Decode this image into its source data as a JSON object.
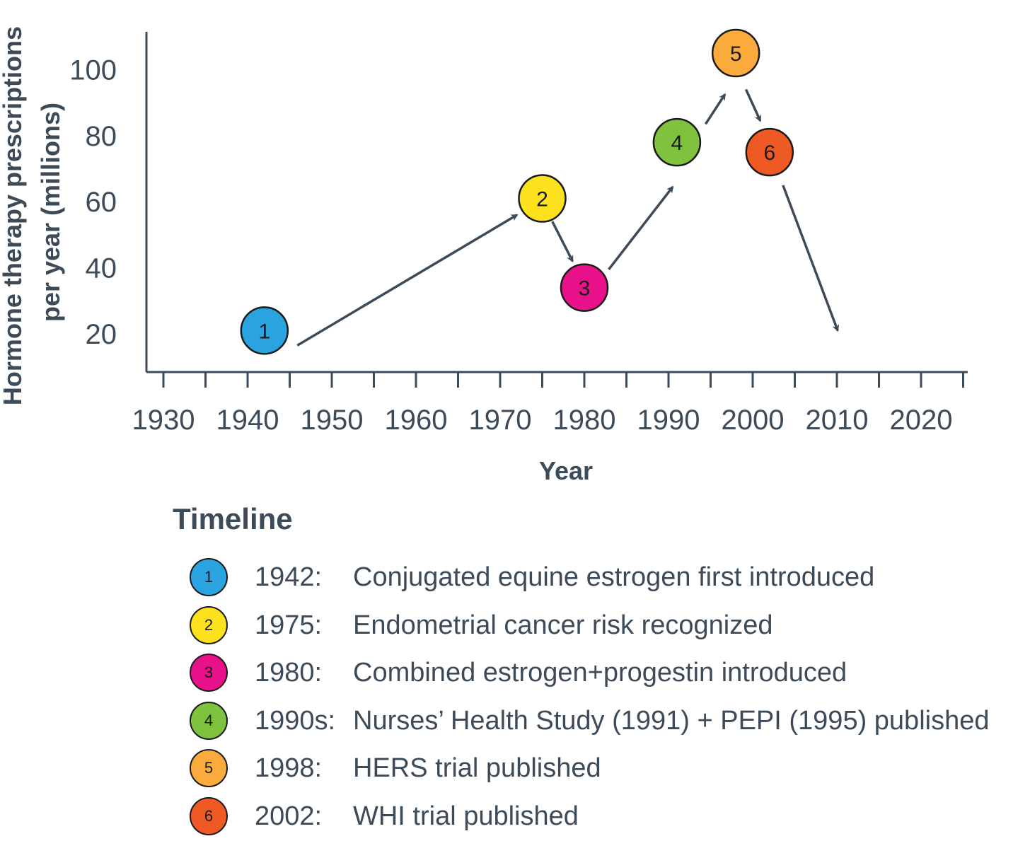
{
  "chart_data": {
    "type": "scatter",
    "xlabel": "Year",
    "ylabel_lines": [
      "Hormone therapy prescriptions",
      "per year (millions)"
    ],
    "xlim": [
      1928,
      2026
    ],
    "ylim": [
      10,
      110
    ],
    "x_ticks": [
      1930,
      1940,
      1950,
      1960,
      1970,
      1980,
      1990,
      2000,
      2010,
      2020
    ],
    "y_ticks": [
      20,
      40,
      60,
      80,
      100
    ],
    "points": [
      {
        "label": "1",
        "x": 1942,
        "y": 21,
        "color": "#2aa4e0"
      },
      {
        "label": "2",
        "x": 1975,
        "y": 61,
        "color": "#fce21c"
      },
      {
        "label": "3",
        "x": 1980,
        "y": 34,
        "color": "#e8118a"
      },
      {
        "label": "4",
        "x": 1991,
        "y": 78,
        "color": "#7ec23e"
      },
      {
        "label": "5",
        "x": 1998,
        "y": 105,
        "color": "#fbab3c"
      },
      {
        "label": "6",
        "x": 2002,
        "y": 75,
        "color": "#ef5a24"
      }
    ],
    "arrows": [
      {
        "from": [
          1945.9,
          16.5
        ],
        "to": [
          1972.0,
          56.0
        ]
      },
      {
        "from": [
          1976.2,
          54.0
        ],
        "to": [
          1978.6,
          42.0
        ]
      },
      {
        "from": [
          1982.9,
          39.5
        ],
        "to": [
          1990.5,
          64.5
        ]
      },
      {
        "from": [
          1994.4,
          83.5
        ],
        "to": [
          1996.7,
          92.5
        ]
      },
      {
        "from": [
          1999.2,
          94.0
        ],
        "to": [
          2000.9,
          84.5
        ]
      },
      {
        "from": [
          2003.6,
          65.0
        ],
        "to": [
          2010.1,
          21.0
        ]
      }
    ],
    "arrow_color": "#3d4b59"
  },
  "legend": {
    "title": "Timeline",
    "items": [
      {
        "num": "1",
        "year": "1942:",
        "text": "Conjugated equine estrogen first introduced",
        "color": "#2aa4e0"
      },
      {
        "num": "2",
        "year": "1975:",
        "text": "Endometrial cancer risk recognized",
        "color": "#fce21c"
      },
      {
        "num": "3",
        "year": "1980:",
        "text": "Combined estrogen+progestin introduced",
        "color": "#e8118a"
      },
      {
        "num": "4",
        "year": "1990s:",
        "text": "Nurses’ Health Study (1991) + PEPI (1995) published",
        "color": "#7ec23e"
      },
      {
        "num": "5",
        "year": "1998:",
        "text": "HERS trial published",
        "color": "#fbab3c"
      },
      {
        "num": "6",
        "year": "2002:",
        "text": "WHI trial published",
        "color": "#ef5a24"
      }
    ]
  }
}
